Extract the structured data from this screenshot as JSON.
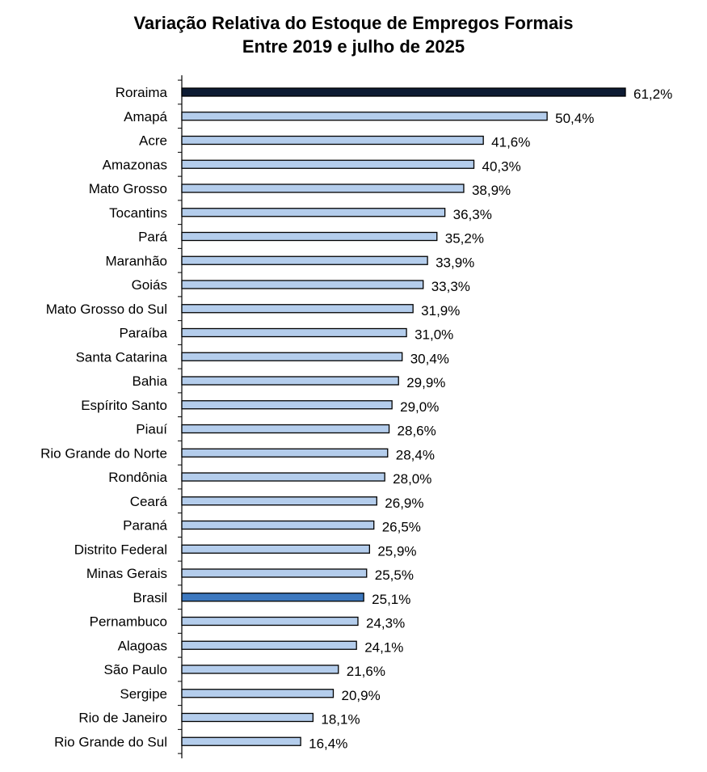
{
  "chart_data": {
    "type": "bar",
    "orientation": "horizontal",
    "title": "Variação Relativa do Estoque de Empregos Formais",
    "subtitle": "Entre 2019 e julho de 2025",
    "xlabel": "",
    "ylabel": "",
    "xlim": [
      0,
      61.2
    ],
    "grid": false,
    "categories": [
      "Roraima",
      "Amapá",
      "Acre",
      "Amazonas",
      "Mato Grosso",
      "Tocantins",
      "Pará",
      "Maranhão",
      "Goiás",
      "Mato Grosso do Sul",
      "Paraíba",
      "Santa Catarina",
      "Bahia",
      "Espírito Santo",
      "Piauí",
      "Rio Grande do Norte",
      "Rondônia",
      "Ceará",
      "Paraná",
      "Distrito Federal",
      "Minas Gerais",
      "Brasil",
      "Pernambuco",
      "Alagoas",
      "São Paulo",
      "Sergipe",
      "Rio de Janeiro",
      "Rio Grande do Sul"
    ],
    "values": [
      61.2,
      50.4,
      41.6,
      40.3,
      38.9,
      36.3,
      35.2,
      33.9,
      33.3,
      31.9,
      31.0,
      30.4,
      29.9,
      29.0,
      28.6,
      28.4,
      28.0,
      26.9,
      26.5,
      25.9,
      25.5,
      25.1,
      24.3,
      24.1,
      21.6,
      20.9,
      18.1,
      16.4
    ],
    "value_labels": [
      "61,2%",
      "50,4%",
      "41,6%",
      "40,3%",
      "38,9%",
      "36,3%",
      "35,2%",
      "33,9%",
      "33,3%",
      "31,9%",
      "31,0%",
      "30,4%",
      "29,9%",
      "29,0%",
      "28,6%",
      "28,4%",
      "28,0%",
      "26,9%",
      "26,5%",
      "25,9%",
      "25,5%",
      "25,1%",
      "24,3%",
      "24,1%",
      "21,6%",
      "20,9%",
      "18,1%",
      "16,4%"
    ],
    "colors": {
      "default": "#b4cdec",
      "highlight_top": "#0d1b33",
      "highlight_national": "#3d78bf",
      "outline": "#000000"
    },
    "highlights": {
      "Roraima": "highlight_top",
      "Brasil": "highlight_national"
    }
  }
}
